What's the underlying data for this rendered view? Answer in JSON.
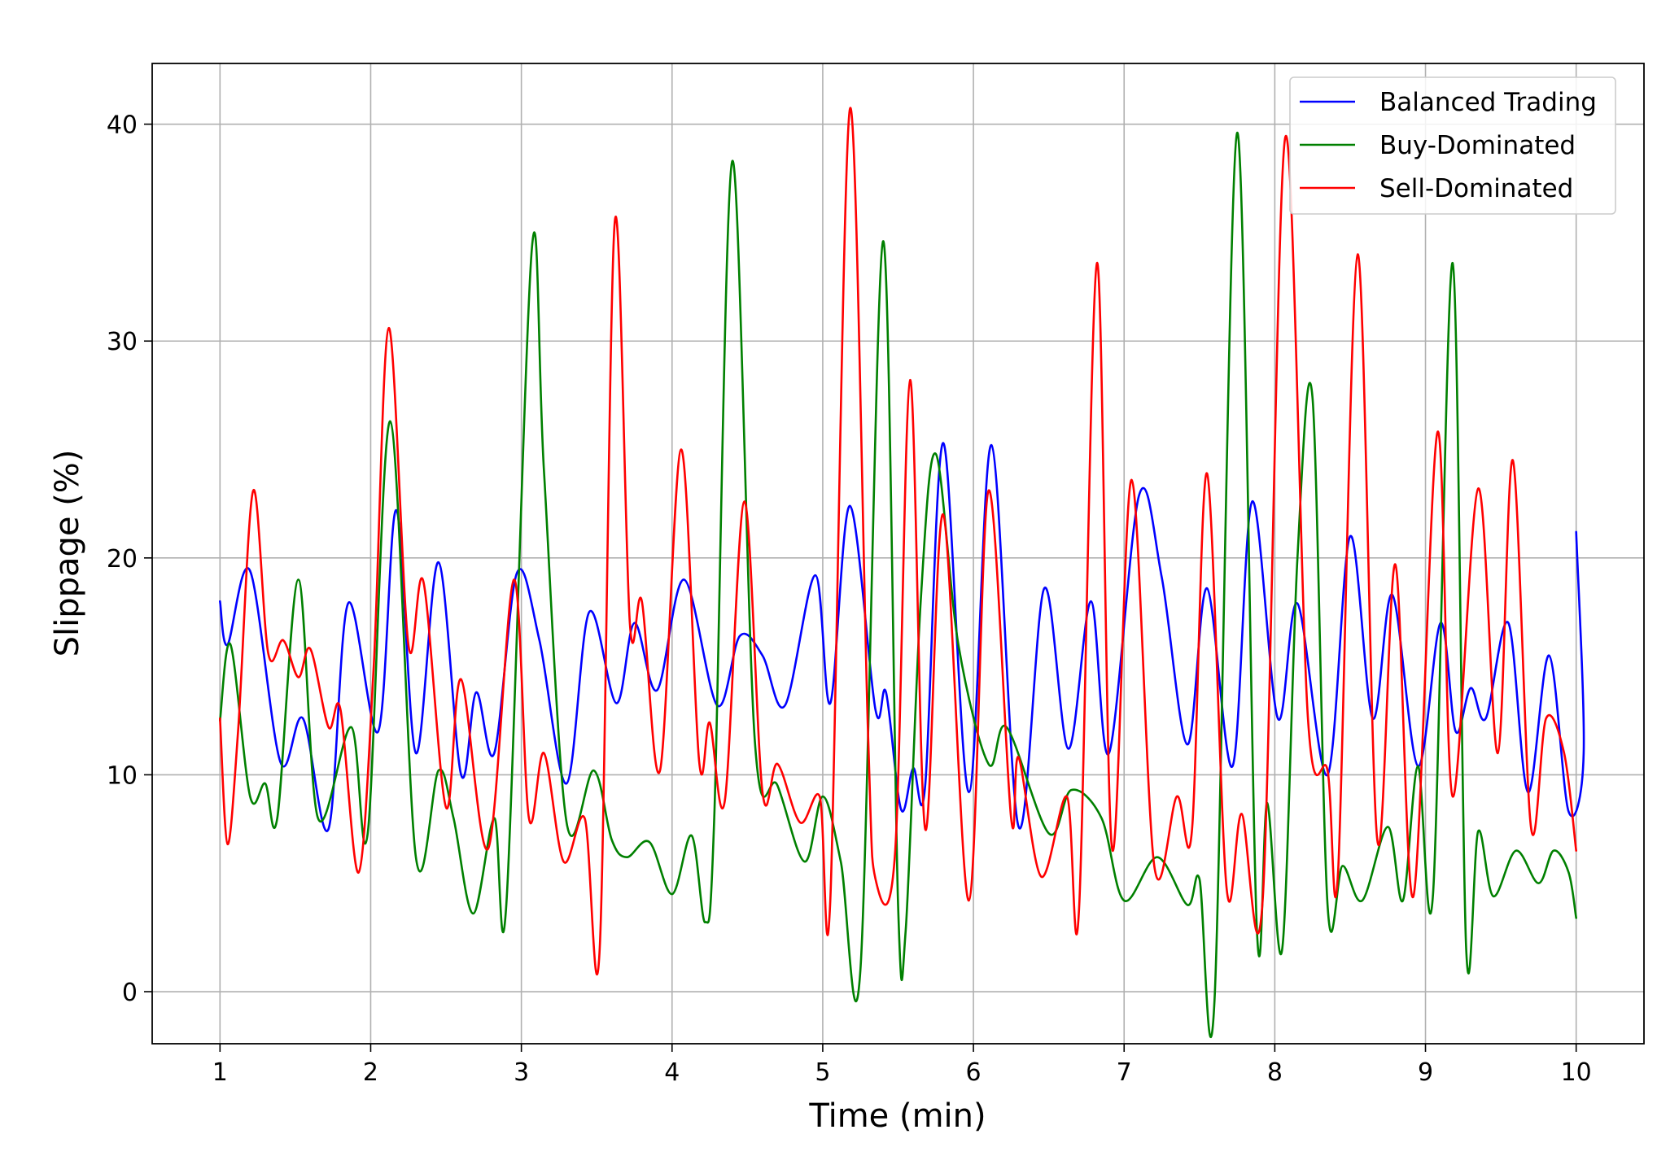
{
  "chart_data": {
    "type": "line",
    "title": "",
    "xlabel": "Time (min)",
    "ylabel": "Slippage (%)",
    "xlim": [
      0.55,
      10.45
    ],
    "ylim": [
      -2.4,
      42.8
    ],
    "xticks": [
      1,
      2,
      3,
      4,
      5,
      6,
      7,
      8,
      9,
      10
    ],
    "yticks": [
      0,
      10,
      20,
      30,
      40
    ],
    "grid": true,
    "legend": {
      "position": "top-right"
    },
    "series": [
      {
        "name": "Balanced Trading",
        "color": "#0000ff",
        "points": [
          [
            1.0,
            18.0
          ],
          [
            1.05,
            16.0
          ],
          [
            1.2,
            19.4
          ],
          [
            1.4,
            10.6
          ],
          [
            1.55,
            12.6
          ],
          [
            1.72,
            7.5
          ],
          [
            1.85,
            17.9
          ],
          [
            2.05,
            12.0
          ],
          [
            2.17,
            22.2
          ],
          [
            2.3,
            11.0
          ],
          [
            2.45,
            19.8
          ],
          [
            2.6,
            10.0
          ],
          [
            2.7,
            13.8
          ],
          [
            2.82,
            11.0
          ],
          [
            2.97,
            19.3
          ],
          [
            3.12,
            16.2
          ],
          [
            3.3,
            9.6
          ],
          [
            3.45,
            17.5
          ],
          [
            3.63,
            13.3
          ],
          [
            3.75,
            17.0
          ],
          [
            3.9,
            13.9
          ],
          [
            4.08,
            19.0
          ],
          [
            4.3,
            13.2
          ],
          [
            4.45,
            16.4
          ],
          [
            4.6,
            15.5
          ],
          [
            4.75,
            13.2
          ],
          [
            4.95,
            19.2
          ],
          [
            5.05,
            13.3
          ],
          [
            5.18,
            22.4
          ],
          [
            5.35,
            13.0
          ],
          [
            5.42,
            13.8
          ],
          [
            5.52,
            8.4
          ],
          [
            5.6,
            10.3
          ],
          [
            5.68,
            9.5
          ],
          [
            5.8,
            25.3
          ],
          [
            5.97,
            9.2
          ],
          [
            6.12,
            25.2
          ],
          [
            6.3,
            7.6
          ],
          [
            6.47,
            18.6
          ],
          [
            6.63,
            11.2
          ],
          [
            6.78,
            18.0
          ],
          [
            6.9,
            11.0
          ],
          [
            7.1,
            22.9
          ],
          [
            7.25,
            19.1
          ],
          [
            7.42,
            11.4
          ],
          [
            7.55,
            18.6
          ],
          [
            7.72,
            10.4
          ],
          [
            7.85,
            22.6
          ],
          [
            8.02,
            12.6
          ],
          [
            8.15,
            17.9
          ],
          [
            8.35,
            10.0
          ],
          [
            8.5,
            21.0
          ],
          [
            8.65,
            12.6
          ],
          [
            8.78,
            18.3
          ],
          [
            8.95,
            10.4
          ],
          [
            9.1,
            17.0
          ],
          [
            9.2,
            12.0
          ],
          [
            9.3,
            14.0
          ],
          [
            9.4,
            12.6
          ],
          [
            9.55,
            17.0
          ],
          [
            9.68,
            9.2
          ],
          [
            9.82,
            15.5
          ],
          [
            9.95,
            8.3
          ],
          [
            10.05,
            11.0
          ],
          [
            10.0,
            21.2
          ]
        ]
      },
      {
        "name": "Buy-Dominated",
        "color": "#008000",
        "points": [
          [
            1.0,
            12.5
          ],
          [
            1.07,
            16.0
          ],
          [
            1.2,
            9.0
          ],
          [
            1.3,
            9.6
          ],
          [
            1.38,
            8.0
          ],
          [
            1.52,
            19.0
          ],
          [
            1.65,
            8.0
          ],
          [
            1.87,
            12.2
          ],
          [
            1.98,
            7.3
          ],
          [
            2.13,
            26.3
          ],
          [
            2.3,
            6.2
          ],
          [
            2.45,
            10.2
          ],
          [
            2.55,
            8.0
          ],
          [
            2.68,
            3.6
          ],
          [
            2.82,
            8.0
          ],
          [
            2.9,
            4.0
          ],
          [
            3.07,
            34.3
          ],
          [
            3.15,
            24.0
          ],
          [
            3.3,
            7.8
          ],
          [
            3.48,
            10.2
          ],
          [
            3.6,
            7.0
          ],
          [
            3.7,
            6.2
          ],
          [
            3.85,
            6.9
          ],
          [
            4.0,
            4.5
          ],
          [
            4.13,
            7.2
          ],
          [
            4.22,
            3.2
          ],
          [
            4.28,
            8.0
          ],
          [
            4.4,
            38.3
          ],
          [
            4.55,
            11.5
          ],
          [
            4.7,
            9.5
          ],
          [
            4.88,
            6.0
          ],
          [
            5.0,
            9.0
          ],
          [
            5.12,
            6.0
          ],
          [
            5.25,
            1.0
          ],
          [
            5.4,
            34.6
          ],
          [
            5.5,
            4.0
          ],
          [
            5.55,
            2.8
          ],
          [
            5.65,
            18.0
          ],
          [
            5.75,
            24.8
          ],
          [
            5.9,
            16.0
          ],
          [
            6.1,
            10.5
          ],
          [
            6.22,
            12.2
          ],
          [
            6.5,
            7.3
          ],
          [
            6.65,
            9.3
          ],
          [
            6.85,
            8.0
          ],
          [
            7.0,
            4.2
          ],
          [
            7.22,
            6.2
          ],
          [
            7.42,
            4.0
          ],
          [
            7.5,
            5.2
          ],
          [
            7.6,
            -0.4
          ],
          [
            7.75,
            39.6
          ],
          [
            7.88,
            3.0
          ],
          [
            7.95,
            8.7
          ],
          [
            8.05,
            2.0
          ],
          [
            8.15,
            20.0
          ],
          [
            8.25,
            27.4
          ],
          [
            8.35,
            4.0
          ],
          [
            8.45,
            5.8
          ],
          [
            8.58,
            4.2
          ],
          [
            8.75,
            7.6
          ],
          [
            8.85,
            4.2
          ],
          [
            8.95,
            10.4
          ],
          [
            9.05,
            4.5
          ],
          [
            9.18,
            33.6
          ],
          [
            9.27,
            2.0
          ],
          [
            9.35,
            7.4
          ],
          [
            9.45,
            4.4
          ],
          [
            9.6,
            6.5
          ],
          [
            9.75,
            5.0
          ],
          [
            9.85,
            6.5
          ],
          [
            9.95,
            5.5
          ],
          [
            10.0,
            3.4
          ]
        ]
      },
      {
        "name": "Sell-Dominated",
        "color": "#ff0000",
        "points": [
          [
            1.0,
            12.6
          ],
          [
            1.05,
            6.8
          ],
          [
            1.12,
            12.0
          ],
          [
            1.22,
            23.1
          ],
          [
            1.32,
            15.6
          ],
          [
            1.42,
            16.2
          ],
          [
            1.52,
            14.5
          ],
          [
            1.6,
            15.8
          ],
          [
            1.72,
            12.2
          ],
          [
            1.8,
            13.0
          ],
          [
            1.92,
            5.5
          ],
          [
            2.02,
            15.0
          ],
          [
            2.12,
            30.6
          ],
          [
            2.25,
            16.0
          ],
          [
            2.35,
            18.9
          ],
          [
            2.5,
            8.5
          ],
          [
            2.6,
            14.4
          ],
          [
            2.78,
            6.6
          ],
          [
            2.95,
            19.0
          ],
          [
            3.05,
            8.0
          ],
          [
            3.15,
            11.0
          ],
          [
            3.28,
            6.0
          ],
          [
            3.42,
            8.0
          ],
          [
            3.52,
            2.0
          ],
          [
            3.62,
            35.5
          ],
          [
            3.72,
            17.0
          ],
          [
            3.8,
            18.0
          ],
          [
            3.92,
            10.2
          ],
          [
            4.06,
            25.0
          ],
          [
            4.18,
            10.6
          ],
          [
            4.25,
            12.4
          ],
          [
            4.35,
            8.8
          ],
          [
            4.48,
            22.6
          ],
          [
            4.6,
            9.2
          ],
          [
            4.7,
            10.5
          ],
          [
            4.85,
            7.8
          ],
          [
            4.98,
            9.0
          ],
          [
            5.05,
            4.2
          ],
          [
            5.18,
            40.7
          ],
          [
            5.3,
            12.0
          ],
          [
            5.35,
            5.2
          ],
          [
            5.48,
            6.4
          ],
          [
            5.58,
            28.2
          ],
          [
            5.68,
            7.5
          ],
          [
            5.8,
            22.0
          ],
          [
            5.97,
            4.2
          ],
          [
            6.1,
            23.1
          ],
          [
            6.25,
            8.0
          ],
          [
            6.3,
            10.8
          ],
          [
            6.45,
            5.3
          ],
          [
            6.62,
            9.0
          ],
          [
            6.7,
            3.7
          ],
          [
            6.82,
            33.6
          ],
          [
            6.92,
            6.6
          ],
          [
            7.05,
            23.6
          ],
          [
            7.2,
            5.8
          ],
          [
            7.35,
            9.0
          ],
          [
            7.45,
            7.4
          ],
          [
            7.55,
            23.9
          ],
          [
            7.68,
            4.8
          ],
          [
            7.78,
            8.2
          ],
          [
            7.92,
            4.3
          ],
          [
            8.07,
            39.4
          ],
          [
            8.22,
            12.6
          ],
          [
            8.35,
            10.2
          ],
          [
            8.42,
            5.5
          ],
          [
            8.55,
            34.0
          ],
          [
            8.68,
            7.0
          ],
          [
            8.8,
            19.7
          ],
          [
            8.92,
            4.4
          ],
          [
            9.08,
            25.8
          ],
          [
            9.18,
            9.0
          ],
          [
            9.35,
            23.2
          ],
          [
            9.48,
            11.0
          ],
          [
            9.58,
            24.5
          ],
          [
            9.7,
            7.6
          ],
          [
            9.8,
            12.6
          ],
          [
            9.92,
            11.0
          ],
          [
            10.0,
            6.5
          ]
        ]
      }
    ]
  }
}
